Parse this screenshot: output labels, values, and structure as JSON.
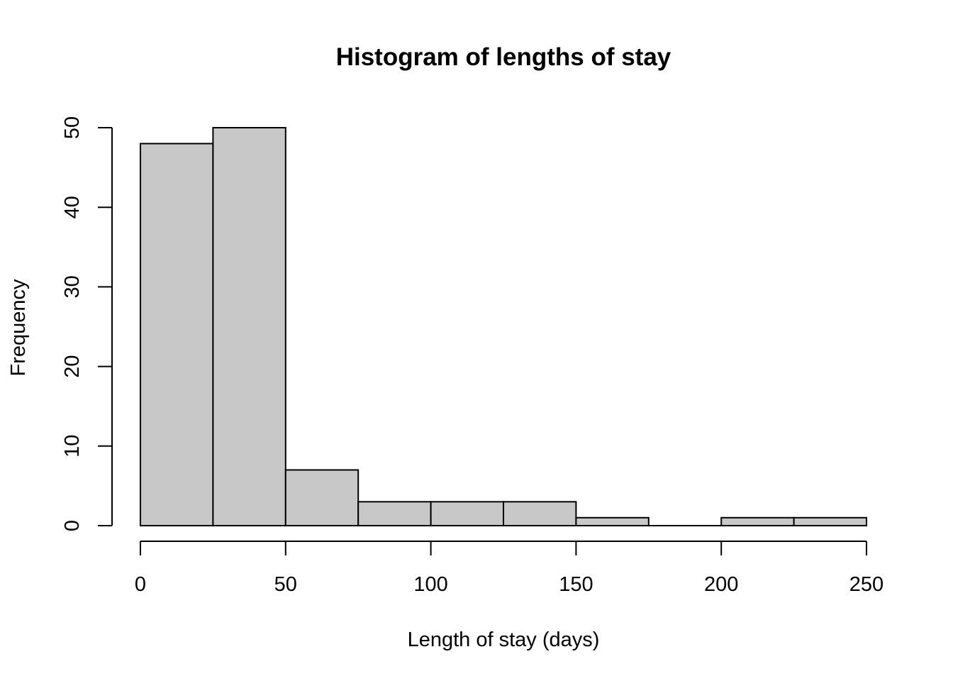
{
  "chart_data": {
    "type": "bar",
    "title": "Histogram of lengths of stay",
    "xlabel": "Length of stay (days)",
    "ylabel": "Frequency",
    "bin_width": 25,
    "bins": [
      {
        "start": 0,
        "end": 25,
        "count": 48
      },
      {
        "start": 25,
        "end": 50,
        "count": 50
      },
      {
        "start": 50,
        "end": 75,
        "count": 7
      },
      {
        "start": 75,
        "end": 100,
        "count": 3
      },
      {
        "start": 100,
        "end": 125,
        "count": 3
      },
      {
        "start": 125,
        "end": 150,
        "count": 3
      },
      {
        "start": 150,
        "end": 175,
        "count": 1
      },
      {
        "start": 175,
        "end": 200,
        "count": 0
      },
      {
        "start": 200,
        "end": 225,
        "count": 1
      },
      {
        "start": 225,
        "end": 250,
        "count": 1
      }
    ],
    "xlim": [
      0,
      250
    ],
    "ylim": [
      0,
      50
    ],
    "xticks": [
      0,
      50,
      100,
      150,
      200,
      250
    ],
    "yticks": [
      0,
      10,
      20,
      30,
      40,
      50
    ],
    "bar_color": "#c8c8c8",
    "edge_color": "#000000",
    "grid": false
  }
}
